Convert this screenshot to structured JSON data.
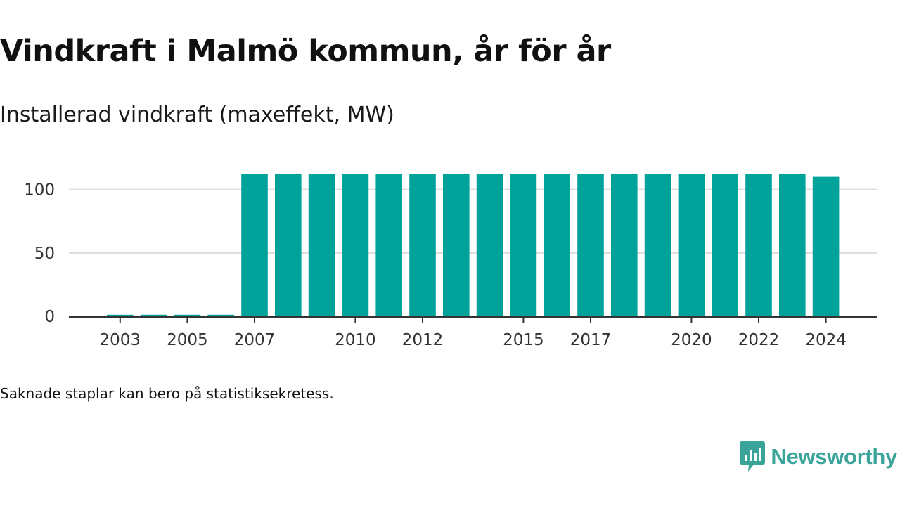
{
  "title": "Vindkraft i Malmö kommun, år för år",
  "subtitle": "Installerad vindkraft (maxeffekt, MW)",
  "note": "Saknade staplar kan bero på statistiksekretess.",
  "brand": {
    "name": "Newsworthy",
    "icon": "newsworthy-chart-bubble-icon"
  },
  "colors": {
    "bar": "#00a39a",
    "axis": "#333333",
    "grid": "#dddddd",
    "brand": "#3aa39a"
  },
  "chart_data": {
    "type": "bar",
    "categories": [
      "2003",
      "2004",
      "2005",
      "2006",
      "2007",
      "2008",
      "2009",
      "2010",
      "2011",
      "2012",
      "2013",
      "2014",
      "2015",
      "2016",
      "2017",
      "2018",
      "2019",
      "2020",
      "2021",
      "2022",
      "2023",
      "2024"
    ],
    "values": [
      1.2,
      1.2,
      1.2,
      1.2,
      112,
      112,
      112,
      112,
      112,
      112,
      112,
      112,
      112,
      112,
      112,
      112,
      112,
      112,
      112,
      112,
      112,
      110
    ],
    "x_tick_labels": [
      "2003",
      "2005",
      "2007",
      "2010",
      "2012",
      "2015",
      "2017",
      "2020",
      "2022",
      "2024"
    ],
    "y_ticks": [
      0,
      50,
      100
    ],
    "ylim": [
      0,
      112
    ],
    "grid": true,
    "xlabel": "",
    "ylabel": ""
  }
}
